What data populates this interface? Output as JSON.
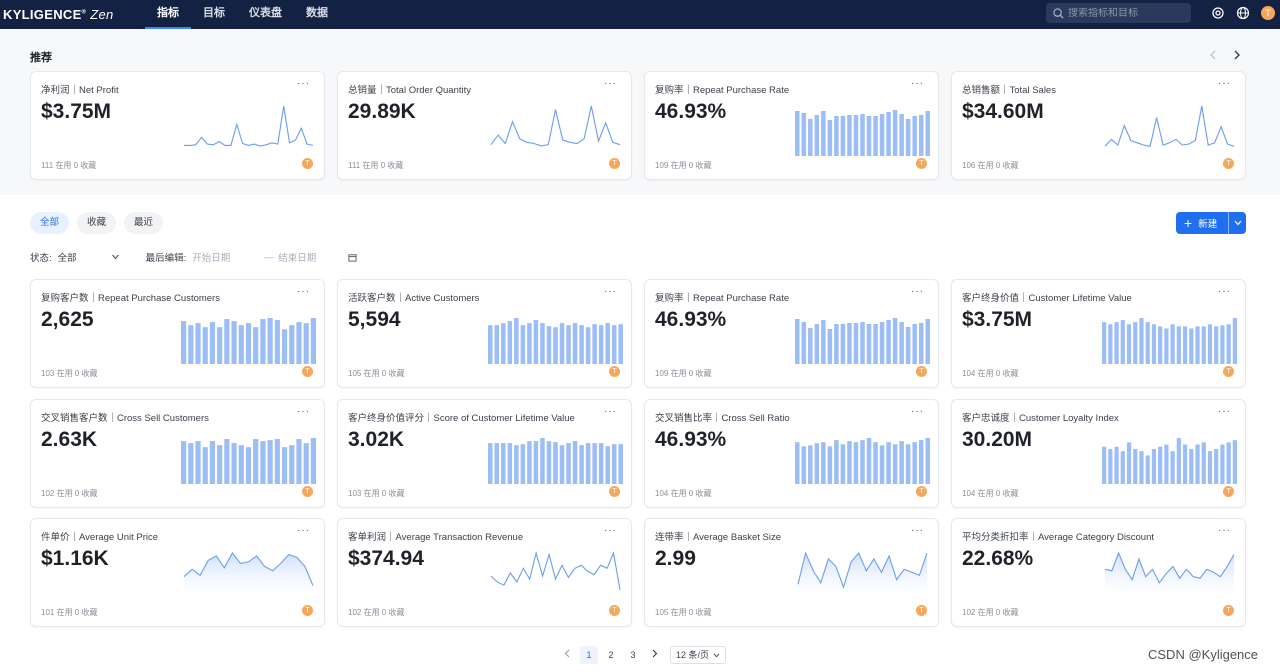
{
  "brand": {
    "name": "KYLIGENCE",
    "mark": "®",
    "product": "Zen"
  },
  "nav": [
    {
      "label": "指标",
      "active": true
    },
    {
      "label": "目标",
      "active": false
    },
    {
      "label": "仪表盘",
      "active": false
    },
    {
      "label": "数据",
      "active": false
    }
  ],
  "search": {
    "placeholder": "搜索指标和目标"
  },
  "user": {
    "initial": "T"
  },
  "recommend": {
    "title": "推荐",
    "cards": [
      {
        "title": "净利润｜Net Profit",
        "value": "$3.75M",
        "meta": "111 在用 0 收藏",
        "chart": "line",
        "series": [
          10,
          10,
          11,
          22,
          12,
          11,
          16,
          10,
          10,
          42,
          13,
          10,
          12,
          9,
          11,
          14,
          12,
          70,
          14,
          18,
          36,
          12,
          10
        ]
      },
      {
        "title": "总销量｜Total Order Quantity",
        "value": "29.89K",
        "meta": "111 在用 0 收藏",
        "chart": "line",
        "series": [
          12,
          28,
          14,
          50,
          22,
          16,
          14,
          10,
          12,
          70,
          20,
          16,
          14,
          22,
          76,
          18,
          48,
          16,
          12
        ]
      },
      {
        "title": "复购率｜Repeat Purchase Rate",
        "value": "46.93%",
        "meta": "109 在用 0 收藏",
        "chart": "bar",
        "series": [
          45,
          43,
          37,
          41,
          45,
          36,
          40,
          40,
          41,
          41,
          42,
          40,
          40,
          42,
          44,
          46,
          42,
          37,
          40,
          41,
          45
        ]
      },
      {
        "title": "总销售额｜Total Sales",
        "value": "$34.60M",
        "meta": "106 在用 0 收藏",
        "chart": "line",
        "series": [
          10,
          22,
          12,
          46,
          20,
          16,
          12,
          10,
          60,
          12,
          16,
          22,
          12,
          14,
          20,
          80,
          12,
          16,
          44,
          14,
          10
        ]
      }
    ]
  },
  "tabs": [
    {
      "label": "全部",
      "active": true
    },
    {
      "label": "收藏",
      "active": false
    },
    {
      "label": "最近",
      "active": false
    }
  ],
  "new_button": {
    "label": "新建"
  },
  "filters": {
    "status_label": "状态:",
    "status_value": "全部",
    "edited_label": "最后编辑:",
    "start_placeholder": "开始日期",
    "separator": "—",
    "end_placeholder": "结束日期"
  },
  "metrics": [
    {
      "title": "复购客户数｜Repeat Purchase Customers",
      "value": "2,625",
      "meta": "103 在用 0 收藏",
      "chart": "bar",
      "series": [
        42,
        38,
        40,
        36,
        41,
        36,
        44,
        42,
        38,
        40,
        36,
        44,
        45,
        43,
        34,
        38,
        41,
        40,
        45
      ]
    },
    {
      "title": "活跃客户数｜Active Customers",
      "value": "5,594",
      "meta": "105 在用 0 收藏",
      "chart": "bar",
      "series": [
        38,
        38,
        40,
        42,
        45,
        38,
        40,
        43,
        40,
        37,
        36,
        40,
        38,
        40,
        38,
        36,
        39,
        38,
        40,
        38,
        39
      ]
    },
    {
      "title": "复购率｜Repeat Purchase Rate",
      "value": "46.93%",
      "meta": "109 在用 0 收藏",
      "chart": "bar",
      "series": [
        45,
        42,
        36,
        40,
        44,
        35,
        40,
        40,
        41,
        41,
        42,
        40,
        40,
        42,
        44,
        46,
        42,
        37,
        40,
        41,
        45
      ]
    },
    {
      "title": "客户终身价值｜Customer Lifetime Value",
      "value": "$3.75M",
      "meta": "104 在用 0 收藏",
      "chart": "bar",
      "series": [
        40,
        38,
        40,
        42,
        38,
        40,
        44,
        40,
        38,
        36,
        34,
        38,
        36,
        36,
        34,
        36,
        36,
        38,
        36,
        37,
        38,
        44
      ]
    },
    {
      "title": "交叉销售客户数｜Cross Sell Customers",
      "value": "2.63K",
      "meta": "102 在用 0 收藏",
      "chart": "bar",
      "series": [
        42,
        40,
        42,
        36,
        42,
        38,
        44,
        40,
        38,
        36,
        44,
        42,
        43,
        44,
        36,
        38,
        44,
        40,
        45
      ]
    },
    {
      "title": "客户终身价值评分｜Score of Customer Lifetime Value",
      "value": "3.02K",
      "meta": "103 在用 0 收藏",
      "chart": "bar",
      "series": [
        40,
        40,
        40,
        40,
        38,
        39,
        42,
        42,
        45,
        42,
        41,
        38,
        40,
        42,
        38,
        40,
        40,
        40,
        37,
        39,
        39
      ]
    },
    {
      "title": "交叉销售比率｜Cross Sell Ratio",
      "value": "46.93%",
      "meta": "104 在用 0 收藏",
      "chart": "bar",
      "series": [
        40,
        36,
        37,
        39,
        40,
        36,
        42,
        38,
        41,
        40,
        42,
        44,
        40,
        37,
        40,
        38,
        41,
        38,
        40,
        42,
        44
      ]
    },
    {
      "title": "客户忠诚度｜Customer Loyalty Index",
      "value": "30.20M",
      "meta": "104 在用 0 收藏",
      "chart": "bar",
      "series": [
        34,
        32,
        34,
        30,
        38,
        32,
        30,
        26,
        32,
        34,
        36,
        30,
        42,
        36,
        32,
        36,
        38,
        30,
        32,
        36,
        38,
        40
      ]
    },
    {
      "title": "件单价｜Average Unit Price",
      "value": "$1.16K",
      "meta": "101 在用 0 收藏",
      "chart": "area",
      "series": [
        30,
        40,
        32,
        52,
        58,
        42,
        62,
        48,
        50,
        58,
        44,
        38,
        48,
        60,
        56,
        44,
        18
      ]
    },
    {
      "title": "客单利润｜Average Transaction Revenue",
      "value": "$374.94",
      "meta": "102 在用 0 收藏",
      "chart": "line",
      "series": [
        30,
        22,
        18,
        34,
        22,
        40,
        26,
        60,
        30,
        58,
        26,
        44,
        28,
        40,
        44,
        36,
        32,
        44,
        40,
        60,
        12
      ]
    },
    {
      "title": "连带率｜Average Basket Size",
      "value": "2.99",
      "meta": "105 在用 0 收藏",
      "chart": "area",
      "series": [
        20,
        62,
        38,
        22,
        54,
        44,
        16,
        50,
        62,
        38,
        54,
        36,
        58,
        26,
        40,
        36,
        32,
        62
      ]
    },
    {
      "title": "平均分类折扣率｜Average Category Discount",
      "value": "22.68%",
      "meta": "102 在用 0 收藏",
      "chart": "area",
      "series": [
        40,
        38,
        62,
        40,
        26,
        54,
        30,
        40,
        22,
        34,
        44,
        28,
        40,
        30,
        28,
        40,
        36,
        30,
        44,
        60
      ]
    }
  ],
  "pagination": {
    "pages": [
      "1",
      "2",
      "3"
    ],
    "current": "1",
    "page_size": "12 条/页"
  },
  "watermark": "CSDN @Kyligence",
  "colors": {
    "bar": "#9dbdf5",
    "line": "#6a9cf0",
    "nav_bg": "#132242",
    "primary": "#1f6ff0",
    "avatar": "#f5a75b"
  }
}
